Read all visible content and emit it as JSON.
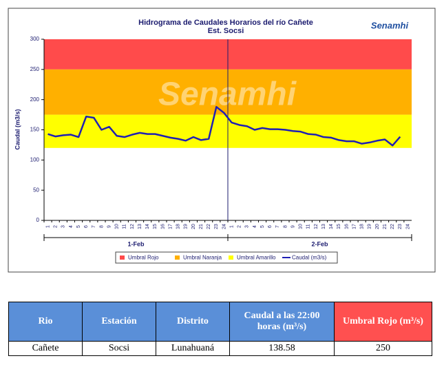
{
  "chart_data": {
    "type": "line",
    "title": "Hidrograma de Caudales Horarios del río Cañete",
    "subtitle": "Est. Socsi",
    "logo": "Senamhi",
    "watermark": "Senamhi",
    "y_label": "Caudal  (m3/s)",
    "ylim": [
      0,
      300
    ],
    "yticks": [
      0,
      50,
      100,
      150,
      200,
      250,
      300
    ],
    "categories": [
      1,
      2,
      3,
      4,
      5,
      6,
      7,
      8,
      9,
      10,
      11,
      12,
      13,
      14,
      15,
      16,
      17,
      18,
      19,
      20,
      21,
      22,
      23,
      24,
      1,
      2,
      3,
      4,
      5,
      6,
      7,
      8,
      9,
      10,
      11,
      12,
      13,
      14,
      15,
      16,
      17,
      18,
      19,
      20,
      21,
      22,
      23,
      24
    ],
    "groups": [
      "1-Feb",
      "2-Feb"
    ],
    "bands": [
      {
        "name": "Umbral Rojo",
        "color": "#ff4b4b",
        "from": 250,
        "to": 300
      },
      {
        "name": "Umbral Naranja",
        "color": "#ffb000",
        "from": 175,
        "to": 250
      },
      {
        "name": "Umbral Amarillo",
        "color": "#ffff00",
        "from": 120,
        "to": 175
      }
    ],
    "series": [
      {
        "name": "Caudal (m3/s)",
        "color": "#1f1fb4",
        "values": [
          143,
          139,
          141,
          142,
          138,
          172,
          170,
          150,
          155,
          140,
          138,
          142,
          145,
          143,
          143,
          140,
          137,
          135,
          132,
          138,
          133,
          135,
          188,
          178,
          162,
          158,
          156,
          150,
          153,
          151,
          151,
          150,
          148,
          147,
          143,
          142,
          138,
          137,
          133,
          131,
          131,
          127,
          129,
          132,
          134,
          124,
          138.58,
          null
        ]
      }
    ]
  },
  "table": {
    "header": [
      "Rio",
      "Estación",
      "Distrito",
      "Caudal a las 22:00 horas (m³/s)",
      "Umbral Rojo (m³/s)"
    ],
    "rows": [
      [
        "Cañete",
        "Socsi",
        "Lunahuaná",
        "138.58",
        "250"
      ]
    ]
  }
}
